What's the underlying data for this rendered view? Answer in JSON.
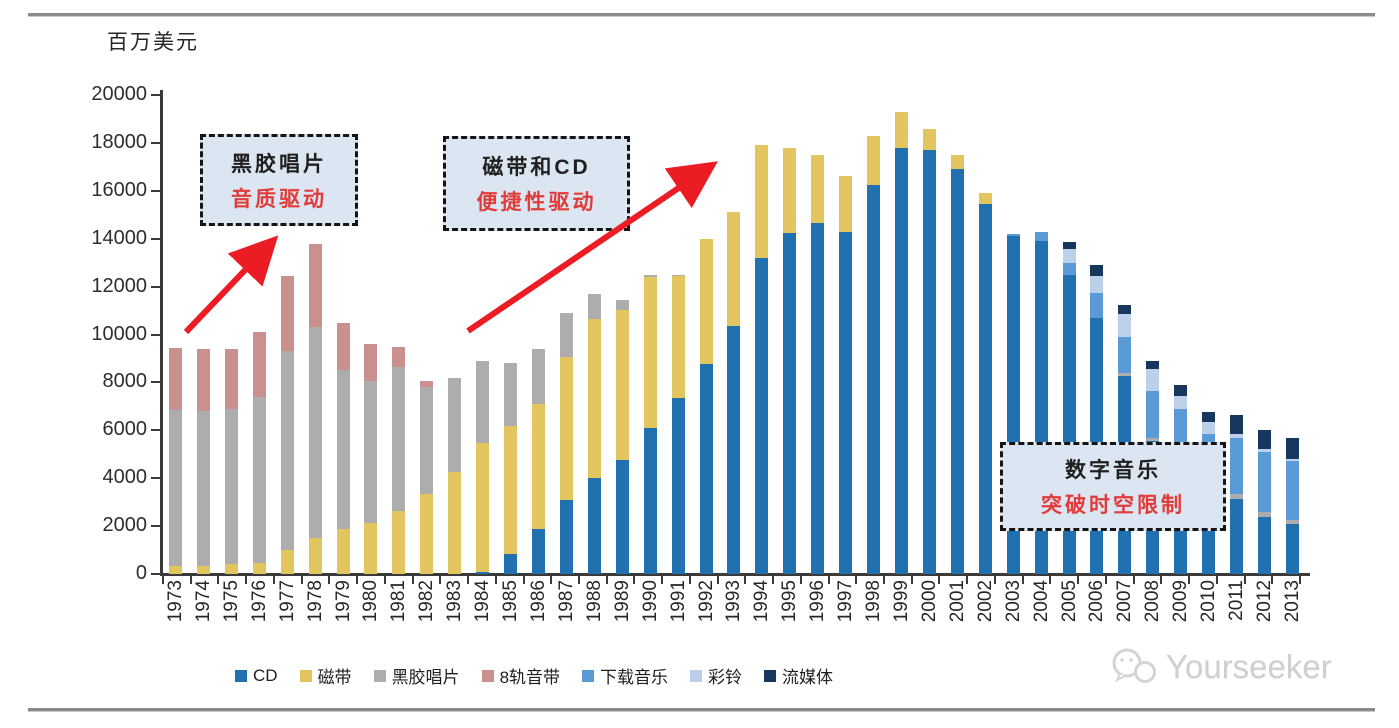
{
  "y_unit_label": "百万美元",
  "watermark": {
    "text": "Yourseeker",
    "icon": "wechat-logo-icon"
  },
  "annotations": [
    {
      "line1": "黑胶唱片",
      "line2": "音质驱动"
    },
    {
      "line1": "磁带和CD",
      "line2": "便捷性驱动"
    },
    {
      "line1": "数字音乐",
      "line2": "突破时空限制"
    }
  ],
  "colors": {
    "cd": "#2170AF",
    "tape": "#E2C55E",
    "vinyl": "#ADADAD",
    "eight_track": "#C9908E",
    "download": "#5B9BD5",
    "ringtone": "#BCD1E9",
    "streaming": "#17375D",
    "arrow_red": "#EC1C24",
    "callout_fill": "#dce6f2",
    "axis": "#3a3a3a"
  },
  "chart_data": {
    "type": "bar",
    "stacked": true,
    "title": "",
    "xlabel": "",
    "ylabel": "百万美元",
    "ylim": [
      0,
      20000
    ],
    "ytick_step": 2000,
    "grid": false,
    "legend_position": "bottom",
    "categories": [
      1973,
      1974,
      1975,
      1976,
      1977,
      1978,
      1979,
      1980,
      1981,
      1982,
      1983,
      1984,
      1985,
      1986,
      1987,
      1988,
      1989,
      1990,
      1991,
      1992,
      1993,
      1994,
      1995,
      1996,
      1997,
      1998,
      1999,
      2000,
      2001,
      2002,
      2003,
      2004,
      2005,
      2006,
      2007,
      2008,
      2009,
      2010,
      2011,
      2012,
      2013
    ],
    "series": [
      {
        "name": "CD",
        "color": "#2170AF",
        "values": [
          0,
          0,
          0,
          0,
          0,
          0,
          0,
          0,
          0,
          0,
          0,
          100,
          830,
          1900,
          3100,
          4000,
          4760,
          6100,
          7350,
          8750,
          10350,
          13200,
          14250,
          14650,
          14300,
          16250,
          17800,
          17700,
          16900,
          15450,
          14100,
          13900,
          12500,
          10700,
          8250,
          5550,
          4300,
          3600,
          3130,
          2380,
          2070
        ]
      },
      {
        "name": "磁带",
        "color": "#E2C55E",
        "values": [
          350,
          350,
          400,
          450,
          1000,
          1500,
          1900,
          2150,
          2650,
          3350,
          4250,
          5350,
          5350,
          5200,
          5950,
          6650,
          6250,
          6300,
          5100,
          5250,
          4750,
          4700,
          3550,
          2850,
          2300,
          2050,
          1500,
          900,
          600,
          450,
          0,
          0,
          0,
          0,
          0,
          0,
          0,
          0,
          0,
          0,
          0
        ]
      },
      {
        "name": "黑胶唱片",
        "color": "#ADADAD",
        "values": [
          6500,
          6450,
          6500,
          6950,
          8300,
          8800,
          6600,
          5900,
          6000,
          4450,
          3950,
          3450,
          2620,
          2300,
          1850,
          1050,
          440,
          100,
          50,
          0,
          0,
          0,
          0,
          0,
          0,
          0,
          0,
          0,
          0,
          0,
          0,
          0,
          0,
          0,
          150,
          150,
          50,
          50,
          200,
          200,
          170
        ]
      },
      {
        "name": "8轨音带",
        "color": "#C9908E",
        "values": [
          2600,
          2600,
          2500,
          2700,
          3150,
          3500,
          2000,
          1550,
          850,
          250,
          0,
          0,
          0,
          0,
          0,
          0,
          0,
          0,
          0,
          0,
          0,
          0,
          0,
          0,
          0,
          0,
          0,
          0,
          0,
          0,
          0,
          0,
          0,
          0,
          0,
          0,
          0,
          0,
          0,
          0,
          0
        ]
      },
      {
        "name": "下载音乐",
        "color": "#5B9BD5",
        "values": [
          0,
          0,
          0,
          0,
          0,
          0,
          0,
          0,
          0,
          0,
          0,
          0,
          0,
          0,
          0,
          0,
          0,
          0,
          0,
          0,
          0,
          0,
          0,
          0,
          0,
          0,
          0,
          0,
          0,
          0,
          100,
          400,
          500,
          1050,
          1500,
          1950,
          2550,
          2200,
          2350,
          2500,
          2460
        ]
      },
      {
        "name": "彩铃",
        "color": "#BCD1E9",
        "values": [
          0,
          0,
          0,
          0,
          0,
          0,
          0,
          0,
          0,
          0,
          0,
          0,
          0,
          0,
          0,
          0,
          0,
          0,
          0,
          0,
          0,
          0,
          0,
          0,
          0,
          0,
          0,
          0,
          0,
          0,
          0,
          0,
          550,
          700,
          950,
          900,
          550,
          500,
          170,
          140,
          100
        ]
      },
      {
        "name": "流媒体",
        "color": "#17375D",
        "values": [
          0,
          0,
          0,
          0,
          0,
          0,
          0,
          0,
          0,
          0,
          0,
          0,
          0,
          0,
          0,
          0,
          0,
          0,
          0,
          0,
          0,
          0,
          0,
          0,
          0,
          0,
          0,
          0,
          0,
          0,
          0,
          0,
          300,
          450,
          400,
          350,
          450,
          430,
          800,
          780,
          900
        ]
      }
    ]
  }
}
